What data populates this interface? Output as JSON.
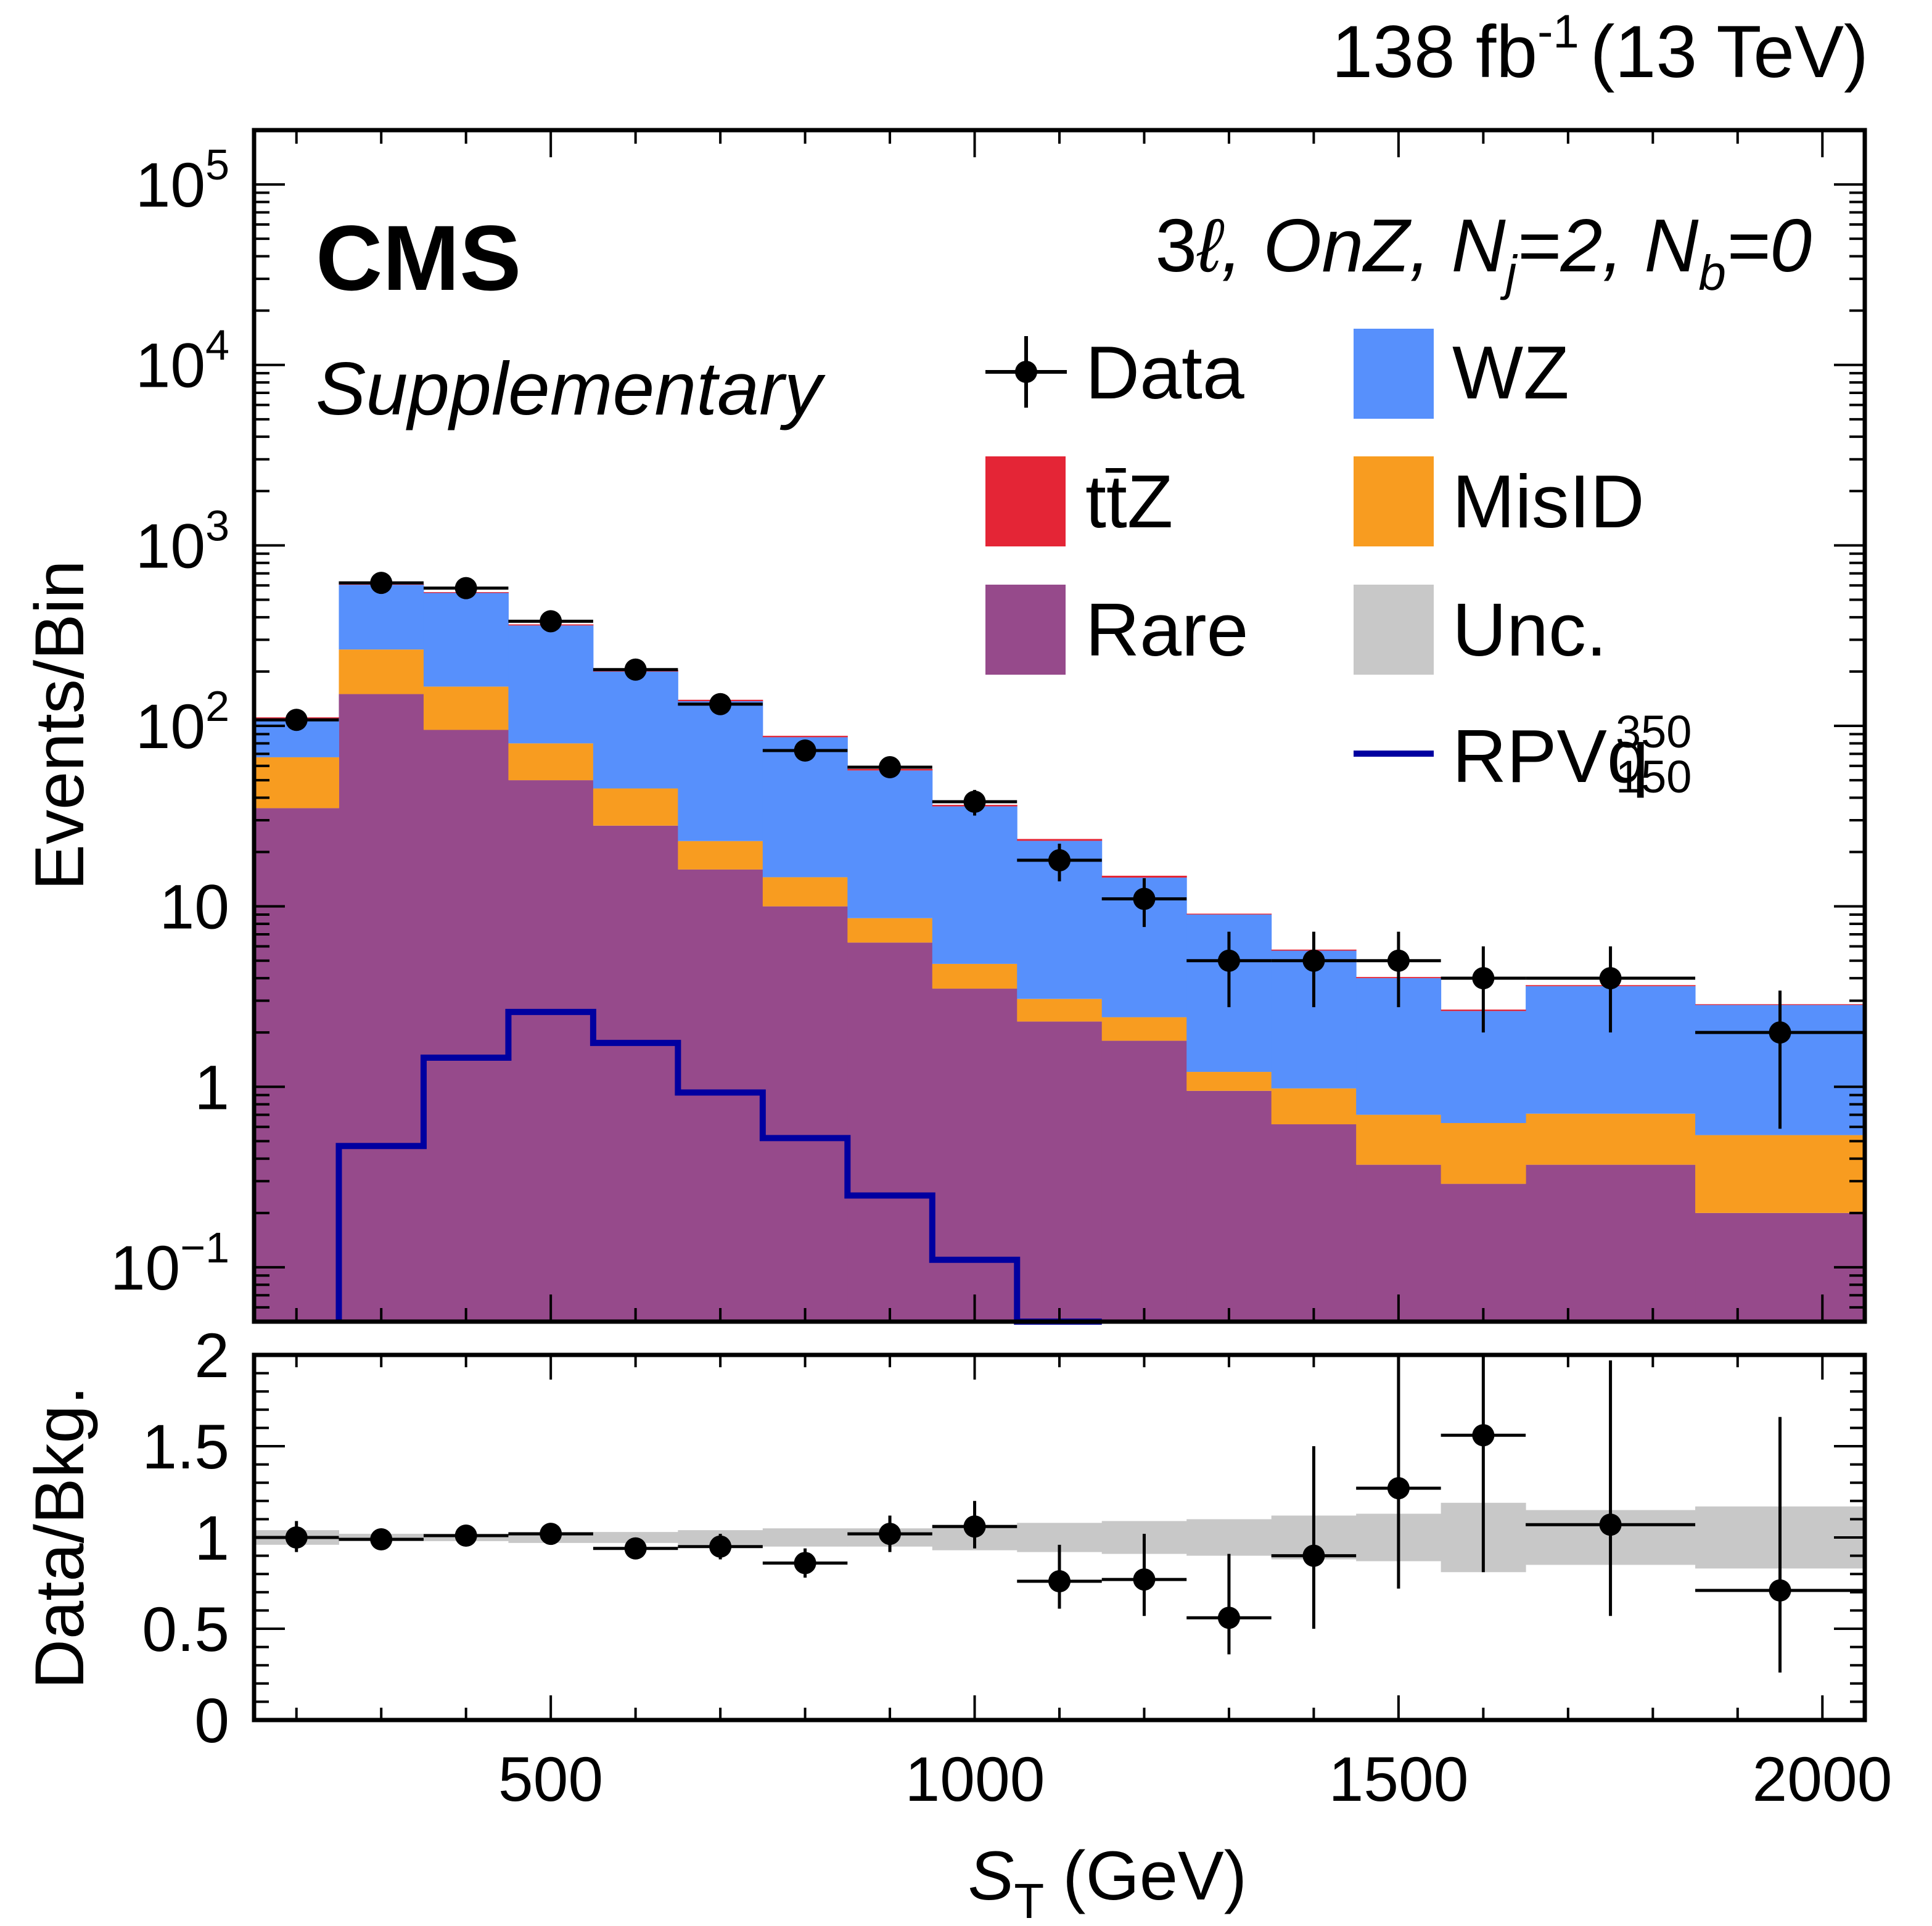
{
  "header": {
    "lumi_value": "138 fb",
    "lumi_exp": "-1",
    "energy": "(13 TeV)",
    "experiment": "CMS",
    "status": "Supplementary"
  },
  "region": {
    "n_leptons": "3",
    "lepton_symbol": "ℓ",
    "category": ", OnZ, ",
    "nj_letter": "N",
    "nj_sub": "j",
    "nj_value": "=2, ",
    "nb_letter": "N",
    "nb_sub": "b",
    "nb_value": "=0"
  },
  "legend": {
    "data": "Data",
    "wz": "WZ",
    "ttz": "tt̄Z",
    "misid": "MisID",
    "rare": "Rare",
    "unc": "Unc.",
    "signal_base": "RPVq",
    "signal_sup": "350",
    "signal_sub": "150"
  },
  "axes": {
    "top_ylabel": "Events/Bin",
    "bottom_ylabel": "Data/Bkg.",
    "xlabel_var": "S",
    "xlabel_sub": "T",
    "xlabel_unit": "(GeV)",
    "x_ticks": [
      "500",
      "1000",
      "1500",
      "2000"
    ],
    "top_ticks": [
      {
        "base": "10",
        "exp": "5",
        "plain": ""
      },
      {
        "base": "10",
        "exp": "4",
        "plain": ""
      },
      {
        "base": "10",
        "exp": "3",
        "plain": ""
      },
      {
        "base": "10",
        "exp": "2",
        "plain": ""
      },
      {
        "base": "",
        "exp": "",
        "plain": "10"
      },
      {
        "base": "",
        "exp": "",
        "plain": "1"
      },
      {
        "base": "10",
        "exp": "−1",
        "plain": ""
      }
    ],
    "ratio_ticks": [
      "2",
      "1.5",
      "1",
      "0.5",
      "0"
    ]
  },
  "colors": {
    "wz": "#5790fc",
    "ttz": "#e42536",
    "misid": "#f89c20",
    "rare": "#964a8b",
    "unc": "#c8c8c8",
    "signal": "#0000a0",
    "data": "#000000"
  },
  "chart_data": {
    "type": "bar",
    "stacked": true,
    "x_variable": "S_T (GeV)",
    "xlim": [
      150,
      2050
    ],
    "ylim": [
      0.05,
      200000
    ],
    "yscale": "log",
    "ratio_ylim": [
      0,
      2
    ],
    "bin_edges": [
      150,
      250,
      350,
      450,
      550,
      650,
      750,
      850,
      950,
      1050,
      1150,
      1250,
      1350,
      1450,
      1550,
      1650,
      1850,
      2050
    ],
    "series": [
      {
        "name": "Rare",
        "values": [
          35,
          150,
          95,
          50,
          28,
          16,
          10,
          6.3,
          3.5,
          2.3,
          1.8,
          0.95,
          0.62,
          0.37,
          0.29,
          0.37,
          0.2
        ]
      },
      {
        "name": "MisID",
        "values": [
          32,
          115,
          70,
          30,
          17,
          7,
          4.5,
          2.3,
          1.3,
          0.77,
          0.63,
          0.26,
          0.36,
          0.33,
          0.34,
          0.34,
          0.34
        ]
      },
      {
        "name": "WZ",
        "values": [
          43,
          340,
          380,
          280,
          155,
          114,
          72,
          48,
          31,
          20,
          12,
          7.8,
          4.7,
          3.3,
          2.0,
          2.9,
          2.3
        ]
      },
      {
        "name": "tt̄Z",
        "values": [
          1.5,
          6,
          6,
          5,
          4,
          2.5,
          1.6,
          1.1,
          0.7,
          0.55,
          0.35,
          0.1,
          0.08,
          0.06,
          0.05,
          0.05,
          0.03
        ]
      }
    ],
    "total_background": [
      111.5,
      611,
      551,
      365,
      204,
      139.5,
      88.1,
      57.7,
      36.5,
      23.62,
      14.78,
      9.11,
      5.76,
      4.06,
      2.68,
      3.66,
      2.87
    ],
    "data_points": {
      "x": [
        200,
        300,
        400,
        500,
        600,
        700,
        800,
        900,
        1000,
        1100,
        1200,
        1300,
        1400,
        1500,
        1600,
        1750,
        1950
      ],
      "y": [
        108,
        620,
        580,
        380,
        205,
        132,
        73,
        59,
        38,
        18,
        11,
        5,
        5,
        5,
        4,
        4,
        2
      ]
    },
    "signal": {
      "name": "RPVq 350/150",
      "values": [
        0,
        0.47,
        1.45,
        2.6,
        1.75,
        0.93,
        0.52,
        0.25,
        0.11,
        0,
        0,
        0,
        0,
        0,
        0,
        0,
        0
      ]
    },
    "ratio": {
      "values": [
        1.0,
        0.99,
        1.01,
        1.02,
        0.94,
        0.95,
        0.86,
        1.02,
        1.06,
        0.76,
        0.77,
        0.56,
        0.9,
        1.27,
        1.56,
        1.07,
        0.71
      ],
      "err_low": [
        0.08,
        0.03,
        0.03,
        0.04,
        0.05,
        0.07,
        0.08,
        0.1,
        0.12,
        0.15,
        0.2,
        0.2,
        0.4,
        0.55,
        0.75,
        0.5,
        0.45
      ],
      "err_high": [
        0.09,
        0.03,
        0.03,
        0.04,
        0.05,
        0.07,
        0.08,
        0.1,
        0.14,
        0.2,
        0.25,
        0.35,
        0.6,
        0.8,
        1.1,
        0.9,
        0.95
      ],
      "unc_band": [
        0.04,
        0.02,
        0.02,
        0.03,
        0.03,
        0.04,
        0.05,
        0.05,
        0.07,
        0.08,
        0.09,
        0.1,
        0.12,
        0.13,
        0.19,
        0.15,
        0.17
      ]
    }
  }
}
